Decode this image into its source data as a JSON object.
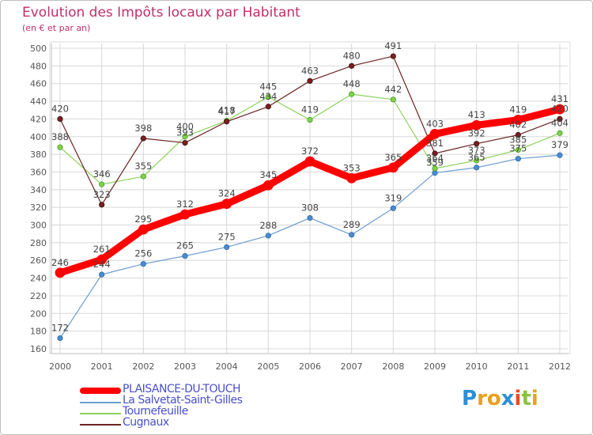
{
  "chart_data": {
    "type": "line",
    "title": "Evolution des Impôts locaux par Habitant",
    "subtitle": "(en € et par an)",
    "xlabel": "",
    "ylabel": "",
    "ylim": [
      160,
      500
    ],
    "y_ticks": [
      160,
      180,
      200,
      220,
      240,
      260,
      280,
      300,
      320,
      340,
      360,
      380,
      400,
      420,
      440,
      460,
      480,
      500
    ],
    "categories": [
      "2000",
      "2001",
      "2002",
      "2003",
      "2004",
      "2005",
      "2006",
      "2007",
      "2008",
      "2009",
      "2010",
      "2011",
      "2012"
    ],
    "grid": true,
    "legend_position": "bottom-left",
    "series": [
      {
        "name": "PLAISANCE-DU-TOUCH",
        "color": "#ff0000",
        "values": [
          246,
          261,
          295,
          312,
          324,
          345,
          372,
          353,
          365,
          403,
          413,
          419,
          431
        ]
      },
      {
        "name": "La Salvetat-Saint-Gilles",
        "color": "#6b9ccf",
        "values": [
          172,
          244,
          256,
          265,
          275,
          288,
          308,
          289,
          319,
          359,
          365,
          375,
          379
        ]
      },
      {
        "name": "Tournefeuille",
        "color": "#8ad45a",
        "values": [
          388,
          346,
          355,
          400,
          418,
          445,
          419,
          448,
          442,
          364,
          373,
          385,
          404
        ]
      },
      {
        "name": "Cugnaux",
        "color": "#6e2323",
        "values": [
          420,
          323,
          398,
          393,
          417,
          434,
          463,
          480,
          491,
          381,
          392,
          402,
          420
        ]
      }
    ]
  },
  "colors": {
    "title": "#c0306a",
    "axis": "#666666",
    "grid": "#d8d8d8"
  },
  "logo": {
    "letters": [
      "P",
      "r",
      "o",
      "x",
      "i",
      "t",
      "i"
    ],
    "colors": [
      "#2b8fd6",
      "#e8a020",
      "#e8a020",
      "#2b8fd6",
      "#e85020",
      "#8ac43a",
      "#e8a020"
    ]
  }
}
